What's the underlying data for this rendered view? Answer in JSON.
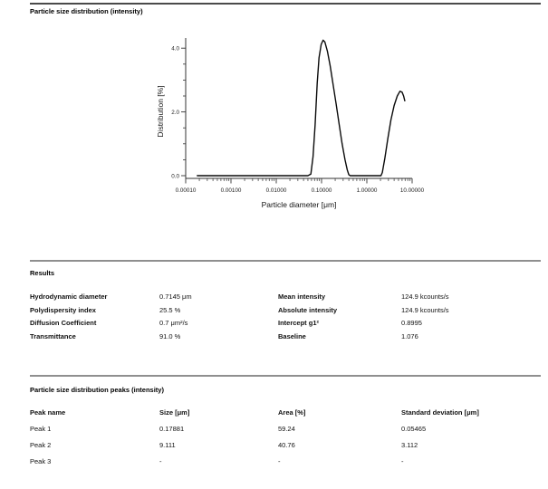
{
  "page": {
    "title": "Particle size distribution (intensity)"
  },
  "chart_data": {
    "type": "line",
    "title": "Particle size distribution (intensity)",
    "xlabel": "Particle diameter [μm]",
    "ylabel": "Distribution [%]",
    "x_scale": "log",
    "xlim": [
      0.0001,
      10
    ],
    "ylim": [
      0,
      4.4
    ],
    "grid": false,
    "legend": "none",
    "line_color": "#0a0a0a",
    "x_ticks": [
      0.0001,
      0.001,
      0.01,
      0.1,
      1,
      10
    ],
    "x_tick_labels": [
      "0.00010",
      "0.00100",
      "0.01000",
      "0.10000",
      "1.00000",
      "10.00000"
    ],
    "y_ticks": [
      0.0,
      2.0,
      4.0
    ],
    "y_tick_labels": [
      "0.0",
      "2.0",
      "4.0"
    ],
    "y_minor_step": 0.5,
    "points": [
      [
        0.00018,
        0
      ],
      [
        0.0003,
        0
      ],
      [
        0.001,
        0
      ],
      [
        0.003,
        0
      ],
      [
        0.01,
        0
      ],
      [
        0.03,
        0
      ],
      [
        0.05,
        0
      ],
      [
        0.058,
        0.05
      ],
      [
        0.065,
        0.6
      ],
      [
        0.072,
        1.6
      ],
      [
        0.08,
        2.9
      ],
      [
        0.088,
        3.7
      ],
      [
        0.098,
        4.12
      ],
      [
        0.108,
        4.25
      ],
      [
        0.118,
        4.2
      ],
      [
        0.135,
        3.9
      ],
      [
        0.155,
        3.45
      ],
      [
        0.18,
        2.85
      ],
      [
        0.21,
        2.25
      ],
      [
        0.245,
        1.6
      ],
      [
        0.285,
        1.0
      ],
      [
        0.33,
        0.5
      ],
      [
        0.37,
        0.18
      ],
      [
        0.4,
        0.03
      ],
      [
        0.43,
        0
      ],
      [
        0.6,
        0
      ],
      [
        1.0,
        0
      ],
      [
        1.6,
        0
      ],
      [
        2.05,
        0
      ],
      [
        2.2,
        0.1
      ],
      [
        2.5,
        0.55
      ],
      [
        2.9,
        1.15
      ],
      [
        3.4,
        1.75
      ],
      [
        4.0,
        2.2
      ],
      [
        4.7,
        2.5
      ],
      [
        5.4,
        2.65
      ],
      [
        6.0,
        2.62
      ],
      [
        6.5,
        2.5
      ],
      [
        6.9,
        2.35
      ]
    ],
    "peaks_annotation": [
      {
        "name": "Peak 1",
        "size_um": 0.17881,
        "area_pct": 59.24
      },
      {
        "name": "Peak 2",
        "size_um": 9.111,
        "area_pct": 40.76
      }
    ]
  },
  "results": {
    "title": "Results",
    "left": [
      {
        "label": "Hydrodynamic diameter",
        "value": "0.7145 μm"
      },
      {
        "label": "Polydispersity index",
        "value": "25.5 %"
      },
      {
        "label": "Diffusion Coefficient",
        "value": "0.7 μm²/s"
      },
      {
        "label": "Transmittance",
        "value": "91.0 %"
      }
    ],
    "right": [
      {
        "label": "Mean intensity",
        "value": "124.9 kcounts/s"
      },
      {
        "label": "Absolute intensity",
        "value": "124.9 kcounts/s"
      },
      {
        "label": "Intercept g1²",
        "value": "0.8995"
      },
      {
        "label": "Baseline",
        "value": "1.076"
      }
    ]
  },
  "peaks": {
    "title": "Particle size distribution peaks (intensity)",
    "columns": [
      "Peak name",
      "Size [μm]",
      "Area [%]",
      "Standard deviation [μm]"
    ],
    "rows": [
      [
        "Peak 1",
        "0.17881",
        "59.24",
        "0.05465"
      ],
      [
        "Peak 2",
        "9.111",
        "40.76",
        "3.112"
      ],
      [
        "Peak 3",
        "-",
        "-",
        "-"
      ]
    ]
  }
}
